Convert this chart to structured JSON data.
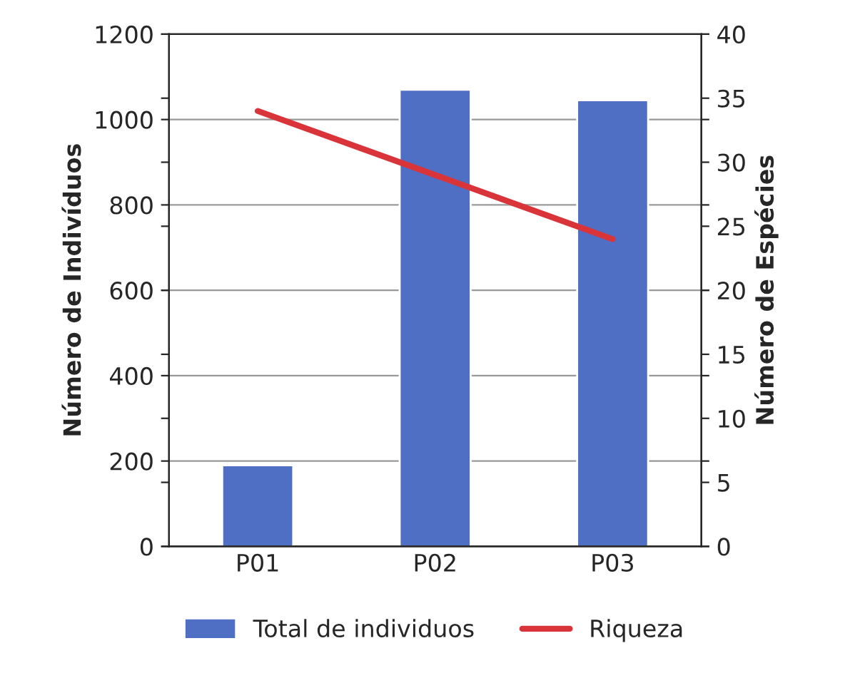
{
  "chart_data": {
    "type": "bar",
    "categories": [
      "P01",
      "P02",
      "P03"
    ],
    "series": [
      {
        "name": "Total de individuos",
        "color": "#4f6fc4",
        "values": [
          190,
          1070,
          1045
        ]
      },
      {
        "name": "Riqueza",
        "type": "line",
        "axis": "y2",
        "color": "#d9343a",
        "values": [
          34,
          29,
          24
        ]
      }
    ],
    "ylabel": "Número de Indivíduos",
    "y2label": "Número de Espécies",
    "ylim": [
      0,
      1200
    ],
    "yticks": [
      0,
      200,
      400,
      600,
      800,
      1000,
      1200
    ],
    "y2lim": [
      0,
      40
    ],
    "y2ticks": [
      0,
      5,
      10,
      15,
      20,
      25,
      30,
      35,
      40
    ],
    "grid": "y",
    "legend": "bottom",
    "marker": "none",
    "line_style": "solid"
  }
}
